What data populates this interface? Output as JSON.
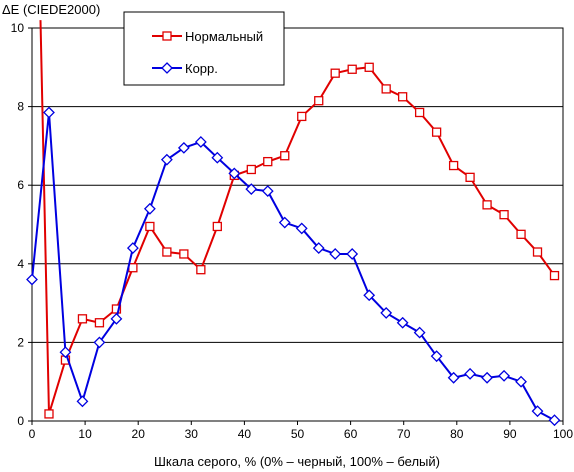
{
  "chart_data": {
    "type": "line",
    "ylabel": "ΔE (CIEDE2000)",
    "xlabel": "Шкала серого, % (0% – черный, 100% – белый)",
    "xlim": [
      0,
      100
    ],
    "ylim": [
      0,
      10
    ],
    "x_ticks": [
      0,
      10,
      20,
      30,
      40,
      50,
      60,
      70,
      80,
      90,
      100
    ],
    "y_ticks": [
      0,
      2,
      4,
      6,
      8,
      10
    ],
    "grid": "horizontal",
    "legend_position": "top-left",
    "series": [
      {
        "name": "Нормальный",
        "color": "#e00000",
        "marker": "square",
        "points": [
          [
            1.6,
            10.2
          ],
          [
            3.2,
            0.18
          ],
          [
            6.3,
            1.55
          ],
          [
            9.5,
            2.6
          ],
          [
            12.7,
            2.5
          ],
          [
            15.9,
            2.85
          ],
          [
            19.0,
            3.9
          ],
          [
            22.2,
            4.95
          ],
          [
            25.4,
            4.3
          ],
          [
            28.6,
            4.25
          ],
          [
            31.8,
            3.85
          ],
          [
            34.9,
            4.95
          ],
          [
            38.1,
            6.25
          ],
          [
            41.3,
            6.4
          ],
          [
            44.4,
            6.6
          ],
          [
            47.6,
            6.75
          ],
          [
            50.8,
            7.75
          ],
          [
            54.0,
            8.15
          ],
          [
            57.1,
            8.85
          ],
          [
            60.3,
            8.95
          ],
          [
            63.5,
            9.0
          ],
          [
            66.7,
            8.45
          ],
          [
            69.8,
            8.25
          ],
          [
            73.0,
            7.85
          ],
          [
            76.2,
            7.35
          ],
          [
            79.4,
            6.5
          ],
          [
            82.5,
            6.2
          ],
          [
            85.7,
            5.5
          ],
          [
            88.9,
            5.25
          ],
          [
            92.1,
            4.75
          ],
          [
            95.2,
            4.3
          ],
          [
            98.4,
            3.7
          ]
        ]
      },
      {
        "name": "Корр.",
        "color": "#0000e0",
        "marker": "diamond",
        "points": [
          [
            0,
            3.6
          ],
          [
            3.2,
            7.85
          ],
          [
            6.3,
            1.75
          ],
          [
            9.5,
            0.5
          ],
          [
            12.7,
            2.0
          ],
          [
            15.9,
            2.6
          ],
          [
            19.0,
            4.4
          ],
          [
            22.2,
            5.4
          ],
          [
            25.4,
            6.65
          ],
          [
            28.6,
            6.95
          ],
          [
            31.8,
            7.1
          ],
          [
            34.9,
            6.7
          ],
          [
            38.1,
            6.3
          ],
          [
            41.3,
            5.9
          ],
          [
            44.4,
            5.85
          ],
          [
            47.6,
            5.05
          ],
          [
            50.8,
            4.9
          ],
          [
            54.0,
            4.4
          ],
          [
            57.1,
            4.25
          ],
          [
            60.3,
            4.25
          ],
          [
            63.5,
            3.2
          ],
          [
            66.7,
            2.75
          ],
          [
            69.8,
            2.5
          ],
          [
            73.0,
            2.25
          ],
          [
            76.2,
            1.65
          ],
          [
            79.4,
            1.1
          ],
          [
            82.5,
            1.2
          ],
          [
            85.7,
            1.1
          ],
          [
            88.9,
            1.15
          ],
          [
            92.1,
            1.0
          ],
          [
            95.2,
            0.25
          ],
          [
            98.4,
            0.02
          ]
        ]
      }
    ]
  }
}
